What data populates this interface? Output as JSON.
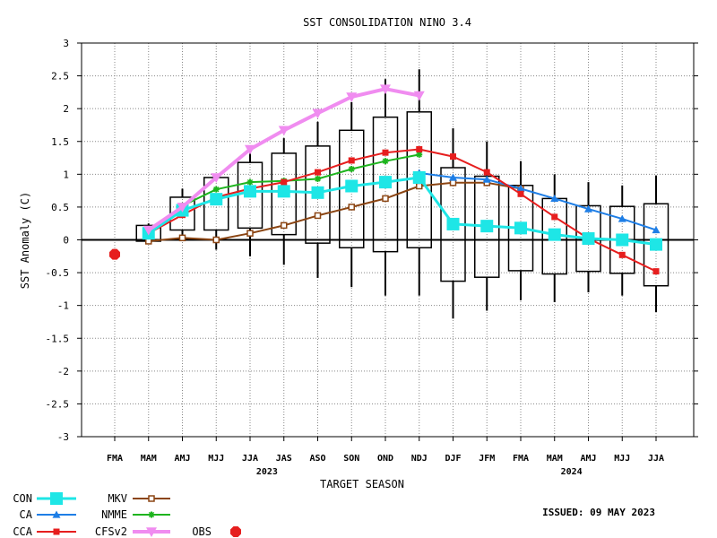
{
  "chart_data": {
    "type": "line",
    "title": "SST CONSOLIDATION NINO 3.4",
    "xlabel": "TARGET SEASON",
    "ylabel": "SST Anomaly (C)",
    "ylim": [
      -3,
      3
    ],
    "yticks": [
      "3",
      "2.5",
      "2",
      "1.5",
      "1",
      "0.5",
      "0",
      "-0.5",
      "-1",
      "-1.5",
      "-2",
      "-2.5",
      "-3"
    ],
    "ytick_values": [
      3,
      2.5,
      2,
      1.5,
      1,
      0.5,
      0,
      -0.5,
      -1,
      -1.5,
      -2,
      -2.5,
      -3
    ],
    "categories": [
      "FMA",
      "MAM",
      "AMJ",
      "MJJ",
      "JJA",
      "JAS",
      "ASO",
      "SON",
      "OND",
      "NDJ",
      "DJF",
      "JFM",
      "FMA",
      "MAM",
      "AMJ",
      "MJJ",
      "JJA"
    ],
    "year_labels": [
      {
        "text": "2023",
        "at": 4.5
      },
      {
        "text": "2024",
        "at": 13.5
      }
    ],
    "grid": true,
    "issued": "ISSUED: 09 MAY 2023",
    "boxes": [
      {
        "x": 1,
        "low": -0.02,
        "high": 0.22,
        "wlow": -0.05,
        "whigh": 0.25
      },
      {
        "x": 2,
        "low": 0.15,
        "high": 0.65,
        "wlow": 0.05,
        "whigh": 0.78
      },
      {
        "x": 3,
        "low": 0.15,
        "high": 0.95,
        "wlow": -0.15,
        "whigh": 1.0
      },
      {
        "x": 4,
        "low": 0.18,
        "high": 1.18,
        "wlow": -0.25,
        "whigh": 1.35
      },
      {
        "x": 5,
        "low": 0.08,
        "high": 1.32,
        "wlow": -0.38,
        "whigh": 1.55
      },
      {
        "x": 6,
        "low": -0.05,
        "high": 1.43,
        "wlow": -0.58,
        "whigh": 1.8
      },
      {
        "x": 7,
        "low": -0.12,
        "high": 1.67,
        "wlow": -0.72,
        "whigh": 2.1
      },
      {
        "x": 8,
        "low": -0.18,
        "high": 1.87,
        "wlow": -0.85,
        "whigh": 2.45
      },
      {
        "x": 9,
        "low": -0.12,
        "high": 1.95,
        "wlow": -0.85,
        "whigh": 2.6
      },
      {
        "x": 10,
        "low": -0.63,
        "high": 1.1,
        "wlow": -1.2,
        "whigh": 1.7
      },
      {
        "x": 11,
        "low": -0.57,
        "high": 0.97,
        "wlow": -1.08,
        "whigh": 1.5
      },
      {
        "x": 12,
        "low": -0.47,
        "high": 0.83,
        "wlow": -0.92,
        "whigh": 1.2
      },
      {
        "x": 13,
        "low": -0.52,
        "high": 0.63,
        "wlow": -0.95,
        "whigh": 1.0
      },
      {
        "x": 14,
        "low": -0.48,
        "high": 0.52,
        "wlow": -0.8,
        "whigh": 0.88
      },
      {
        "x": 15,
        "low": -0.51,
        "high": 0.51,
        "wlow": -0.85,
        "whigh": 0.83
      },
      {
        "x": 16,
        "low": -0.7,
        "high": 0.55,
        "wlow": -1.1,
        "whigh": 0.98
      }
    ],
    "series": [
      {
        "name": "CON",
        "color": "#1ee6e6",
        "marker": "square-big",
        "width": 3,
        "x": [
          1,
          2,
          3,
          4,
          5,
          6,
          7,
          8,
          9,
          10,
          11,
          12,
          13,
          14,
          15,
          16
        ],
        "values": [
          0.1,
          0.45,
          0.62,
          0.74,
          0.74,
          0.72,
          0.82,
          0.88,
          0.95,
          0.24,
          0.21,
          0.18,
          0.08,
          0.02,
          0.0,
          -0.07
        ]
      },
      {
        "name": "CA",
        "color": "#1e7ee6",
        "marker": "triangle",
        "width": 2,
        "x": [
          9,
          10,
          11,
          12,
          13,
          14,
          15,
          16
        ],
        "values": [
          1.02,
          0.95,
          0.92,
          0.78,
          0.63,
          0.47,
          0.32,
          0.15
        ]
      },
      {
        "name": "CCA",
        "color": "#e61e1e",
        "marker": "square",
        "width": 2,
        "x": [
          1,
          2,
          3,
          4,
          5,
          6,
          7,
          8,
          9,
          10,
          11,
          12,
          13,
          14,
          15,
          16
        ],
        "values": [
          0.1,
          0.38,
          0.65,
          0.78,
          0.88,
          1.03,
          1.21,
          1.33,
          1.38,
          1.27,
          1.03,
          0.7,
          0.35,
          0.02,
          -0.23,
          -0.48
        ]
      },
      {
        "name": "MKV",
        "color": "#8b4513",
        "marker": "open-square",
        "width": 2,
        "x": [
          1,
          2,
          3,
          4,
          5,
          6,
          7,
          8,
          9,
          10,
          11,
          12
        ],
        "values": [
          -0.02,
          0.03,
          0.0,
          0.1,
          0.22,
          0.37,
          0.5,
          0.63,
          0.82,
          0.87,
          0.87,
          0.78
        ]
      },
      {
        "name": "NMME",
        "color": "#1eb41e",
        "marker": "star",
        "width": 2,
        "x": [
          1,
          2,
          3,
          4,
          5,
          6,
          7,
          8,
          9
        ],
        "values": [
          0.12,
          0.52,
          0.77,
          0.88,
          0.9,
          0.93,
          1.08,
          1.2,
          1.3
        ]
      },
      {
        "name": "CFSv2",
        "color": "#f08cf0",
        "marker": "tri-down",
        "width": 4,
        "x": [
          1,
          2,
          3,
          4,
          5,
          6,
          7,
          8,
          9
        ],
        "values": [
          0.15,
          0.5,
          0.95,
          1.38,
          1.67,
          1.93,
          2.18,
          2.3,
          2.2
        ]
      },
      {
        "name": "OBS",
        "color": "#e61e1e",
        "marker": "octagon",
        "width": 0,
        "x": [
          0
        ],
        "values": [
          -0.22
        ]
      }
    ]
  }
}
